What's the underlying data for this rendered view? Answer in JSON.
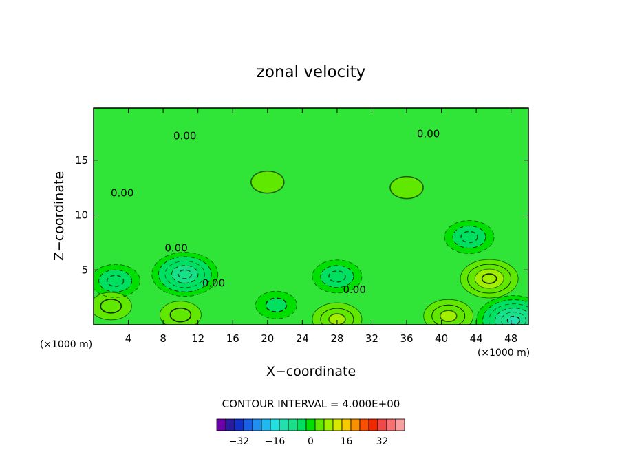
{
  "chart_data": {
    "type": "heatmap",
    "title": "zonal velocity",
    "xlabel": "X−coordinate",
    "ylabel": "Z−coordinate",
    "xunit": "(×1000 m)",
    "yunit": "(×1000 m)",
    "xlim": [
      0,
      50
    ],
    "ylim": [
      0,
      19.75
    ],
    "x_ticks": [
      4,
      8,
      12,
      16,
      20,
      24,
      28,
      32,
      36,
      40,
      44,
      48
    ],
    "y_ticks": [
      5,
      10,
      15
    ],
    "x_tick_labels": [
      "4",
      "8",
      "12",
      "16",
      "20",
      "24",
      "28",
      "32",
      "36",
      "40",
      "44",
      "48"
    ],
    "y_tick_labels": [
      "5",
      "10",
      "15"
    ],
    "contour_interval_text": "CONTOUR INTERVAL = 4.000E+00",
    "contour_interval": 4,
    "background_value": 0,
    "contour_labels": [
      {
        "text": "0.00",
        "x": 10.5,
        "y": 17.2
      },
      {
        "text": "0.00",
        "x": 38.5,
        "y": 17.4
      },
      {
        "text": "0.00",
        "x": 3.3,
        "y": 12.0
      },
      {
        "text": "0.00",
        "x": 9.5,
        "y": 7.0
      },
      {
        "text": "0.00",
        "x": 13.8,
        "y": 3.8
      },
      {
        "text": "0.00",
        "x": 30.0,
        "y": 3.2
      }
    ],
    "features": [
      {
        "x": 10.5,
        "y": 4.6,
        "value": -10
      },
      {
        "x": 2.5,
        "y": 4.0,
        "value": -6
      },
      {
        "x": 28.0,
        "y": 4.4,
        "value": -6
      },
      {
        "x": 43.2,
        "y": 8.0,
        "value": -5
      },
      {
        "x": 48.3,
        "y": 0.4,
        "value": -12
      },
      {
        "x": 21.0,
        "y": 1.8,
        "value": -4
      },
      {
        "x": 45.5,
        "y": 4.2,
        "value": 8
      },
      {
        "x": 40.8,
        "y": 0.8,
        "value": 6
      },
      {
        "x": 28.0,
        "y": 0.5,
        "value": 6
      },
      {
        "x": 10.0,
        "y": 0.9,
        "value": 4
      },
      {
        "x": 2.0,
        "y": 1.7,
        "value": 4
      },
      {
        "x": 20.0,
        "y": 13.0,
        "value": 2
      },
      {
        "x": 36.0,
        "y": 12.5,
        "value": 2
      }
    ],
    "colorbar": {
      "colors": [
        "#6a00aa",
        "#2a1aa0",
        "#1030c8",
        "#1860e8",
        "#2090f0",
        "#20b8f0",
        "#20e0e0",
        "#20e0b0",
        "#18e088",
        "#00e060",
        "#00e000",
        "#60e800",
        "#a0f000",
        "#d8e800",
        "#f8c800",
        "#f89000",
        "#f85000",
        "#f02800",
        "#f04848",
        "#f87070",
        "#f8a0a0"
      ],
      "tick_labels": [
        "−32",
        "−16",
        "0",
        "16",
        "32"
      ],
      "tick_values": [
        -32,
        -16,
        0,
        16,
        32
      ],
      "range": [
        -42,
        42
      ]
    }
  }
}
